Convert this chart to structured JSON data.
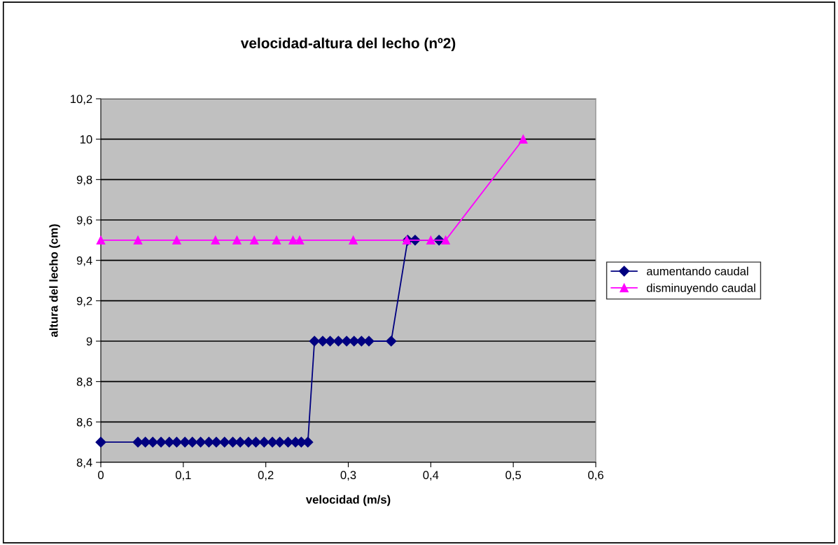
{
  "chart_data": {
    "type": "line",
    "title": "velocidad-altura del lecho (nº2)",
    "xlabel": "velocidad (m/s)",
    "ylabel": "altura del lecho (cm)",
    "xlim": [
      0,
      0.6
    ],
    "xticks": [
      0,
      {
        "value": 0.1,
        "label": "0,1"
      },
      {
        "value": 0.2,
        "label": "0,2"
      },
      {
        "value": 0.3,
        "label": "0,3"
      },
      {
        "value": 0.4,
        "label": "0,4"
      },
      {
        "value": 0.5,
        "label": "0,5"
      },
      {
        "value": 0.6,
        "label": "0,6"
      }
    ],
    "ylim": [
      8.4,
      10.2
    ],
    "yticks": [
      {
        "value": 8.4,
        "label": "8,4"
      },
      {
        "value": 8.6,
        "label": "8,6"
      },
      {
        "value": 8.8,
        "label": "8,8"
      },
      9,
      {
        "value": 9.2,
        "label": "9,2"
      },
      {
        "value": 9.4,
        "label": "9,4"
      },
      {
        "value": 9.6,
        "label": "9,6"
      },
      {
        "value": 9.8,
        "label": "9,8"
      },
      10,
      {
        "value": 10.2,
        "label": "10,2"
      }
    ],
    "grid": "y",
    "legend": "right",
    "series": [
      {
        "name": "aumentando caudal",
        "color": "#000080",
        "marker": "diamond",
        "x": [
          0,
          0.045,
          0.054,
          0.063,
          0.073,
          0.083,
          0.092,
          0.102,
          0.111,
          0.121,
          0.131,
          0.14,
          0.15,
          0.16,
          0.169,
          0.179,
          0.188,
          0.198,
          0.208,
          0.217,
          0.227,
          0.236,
          0.243,
          0.251,
          0.259,
          0.269,
          0.278,
          0.288,
          0.298,
          0.307,
          0.316,
          0.325,
          0.352,
          0.372,
          0.381,
          0.41
        ],
        "values": [
          8.5,
          8.5,
          8.5,
          8.5,
          8.5,
          8.5,
          8.5,
          8.5,
          8.5,
          8.5,
          8.5,
          8.5,
          8.5,
          8.5,
          8.5,
          8.5,
          8.5,
          8.5,
          8.5,
          8.5,
          8.5,
          8.5,
          8.5,
          8.5,
          9,
          9,
          9,
          9,
          9,
          9,
          9,
          9,
          9,
          9.5,
          9.5,
          9.5
        ]
      },
      {
        "name": "disminuyendo caudal",
        "color": "#ff00ff",
        "marker": "triangle",
        "x": [
          0,
          0.045,
          0.092,
          0.139,
          0.165,
          0.186,
          0.213,
          0.233,
          0.241,
          0.306,
          0.371,
          0.4,
          0.418,
          0.512
        ],
        "values": [
          9.5,
          9.5,
          9.5,
          9.5,
          9.5,
          9.5,
          9.5,
          9.5,
          9.5,
          9.5,
          9.5,
          9.5,
          9.5,
          10
        ]
      }
    ]
  }
}
